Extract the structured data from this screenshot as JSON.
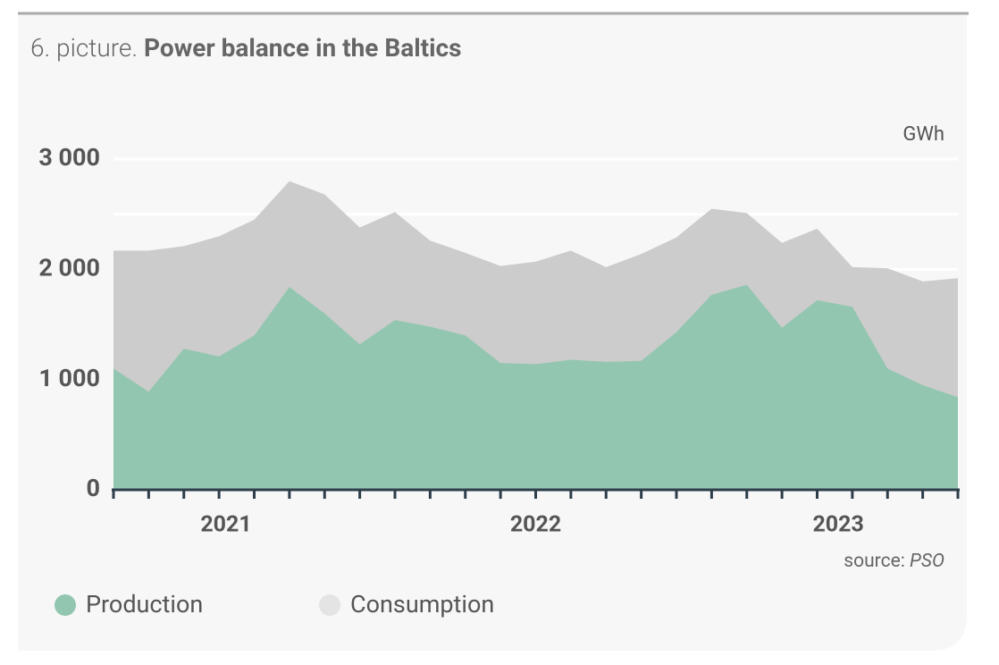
{
  "chart_data": {
    "type": "area",
    "figure_label": "6. picture.",
    "title": "Power balance in the Baltics",
    "unit": "GWh",
    "source_prefix": "source:",
    "source": "PSO",
    "x": [
      0,
      1,
      2,
      3,
      4,
      5,
      6,
      7,
      8,
      9,
      10,
      11,
      12,
      13,
      14,
      15,
      16,
      17,
      18,
      19,
      20,
      21,
      22,
      23,
      24
    ],
    "xlim": [
      0,
      24
    ],
    "xticks": [
      {
        "value": 3.2,
        "label": "2021"
      },
      {
        "value": 12,
        "label": "2022"
      },
      {
        "value": 20.6,
        "label": "2023"
      }
    ],
    "ylim": [
      0,
      3000
    ],
    "yticks": [
      0,
      {
        "value": 1000,
        "label": "1 000"
      },
      {
        "value": 2000,
        "label": "2 000"
      },
      {
        "value": 3000,
        "label": "3 000"
      }
    ],
    "ygrid": [
      500,
      1000,
      1500,
      2000,
      2500,
      3000
    ],
    "grid": true,
    "series": [
      {
        "name": "Production",
        "color": "#93c6b0",
        "values": [
          1100,
          890,
          1280,
          1210,
          1400,
          1840,
          1600,
          1320,
          1540,
          1480,
          1400,
          1150,
          1140,
          1180,
          1160,
          1170,
          1430,
          1770,
          1860,
          1470,
          1720,
          1660,
          1100,
          950,
          840
        ]
      },
      {
        "name": "Consumption",
        "color": "#cccccc",
        "values": [
          2170,
          2170,
          2210,
          2300,
          2450,
          2800,
          2680,
          2380,
          2520,
          2260,
          2150,
          2030,
          2070,
          2170,
          2020,
          2140,
          2290,
          2550,
          2510,
          2240,
          2370,
          2020,
          2010,
          1890,
          1920
        ]
      }
    ]
  }
}
